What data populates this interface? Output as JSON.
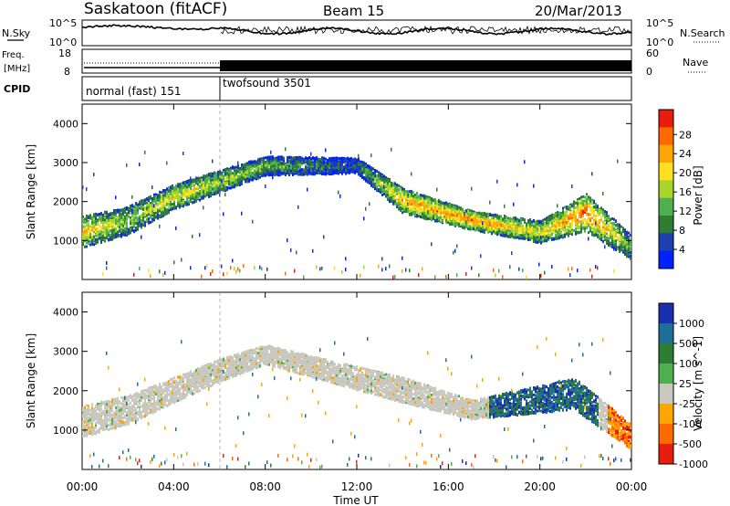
{
  "header": {
    "station": "Saskatoon (fitACF)",
    "beam": "Beam 15",
    "date": "20/Mar/2013"
  },
  "noise_panel": {
    "left_label": "N.Sky",
    "right_label": "N.Search",
    "left_ticks": [
      "10^5",
      "10^0"
    ],
    "right_ticks": [
      "10^5",
      "10^0"
    ]
  },
  "freq_panel": {
    "label_freq": "Freq.",
    "label_unit": "[MHz]",
    "left_ticks": [
      "18",
      "8"
    ],
    "right_ticks": [
      "60",
      "0"
    ],
    "right_label": "Nave"
  },
  "cpid": {
    "label": "CPID",
    "segments": [
      {
        "name": "normal (fast) 151",
        "start": "00:00",
        "end": "06:00"
      },
      {
        "name": "twofsound 3501",
        "start": "06:00",
        "end": "24:00"
      }
    ]
  },
  "chart_data": [
    {
      "type": "heatmap",
      "title": "Power",
      "xlabel": "",
      "ylabel": "Slant Range [km]",
      "xlim_hours": [
        0,
        24
      ],
      "ylim": [
        0,
        4500
      ],
      "yticks": [
        1000,
        2000,
        3000,
        4000
      ],
      "colorbar": {
        "label": "Power [dB]",
        "ticks": [
          "4",
          "8",
          "12",
          "16",
          "20",
          "24",
          "28"
        ],
        "colors": [
          "#0022ff",
          "#1e3fb0",
          "#2e7d32",
          "#4fb04f",
          "#a6d62a",
          "#ffe020",
          "#ffa500",
          "#ff6a00",
          "#e81d0e"
        ]
      },
      "scatter_bands": [
        {
          "t": 0.0,
          "range": 1200,
          "width": 500,
          "power": 20
        },
        {
          "t": 2.0,
          "range": 1500,
          "width": 450,
          "power": 14
        },
        {
          "t": 4.0,
          "range": 2100,
          "width": 400,
          "power": 18
        },
        {
          "t": 6.0,
          "range": 2500,
          "width": 350,
          "power": 16
        },
        {
          "t": 8.0,
          "range": 2900,
          "width": 300,
          "power": 12
        },
        {
          "t": 12.0,
          "range": 2900,
          "width": 250,
          "power": 6
        },
        {
          "t": 14.0,
          "range": 2000,
          "width": 400,
          "power": 22
        },
        {
          "t": 17.0,
          "range": 1500,
          "width": 300,
          "power": 24
        },
        {
          "t": 20.0,
          "range": 1200,
          "width": 350,
          "power": 18
        },
        {
          "t": 22.0,
          "range": 1700,
          "width": 600,
          "power": 26
        },
        {
          "t": 24.0,
          "range": 800,
          "width": 400,
          "power": 12
        }
      ]
    },
    {
      "type": "heatmap",
      "title": "Velocity",
      "xlabel": "Time UT",
      "ylabel": "Slant Range [km]",
      "xlim_hours": [
        0,
        24
      ],
      "ylim": [
        0,
        4500
      ],
      "yticks": [
        1000,
        2000,
        3000,
        4000
      ],
      "xticks": [
        "00:00",
        "04:00",
        "08:00",
        "12:00",
        "16:00",
        "20:00",
        "00:00"
      ],
      "colorbar": {
        "label": "Velocity [m s^-1]",
        "ticks": [
          "1000",
          "500",
          "100",
          "25",
          "-25",
          "-100",
          "-500",
          "-1000"
        ],
        "colors": [
          "#1a2fb0",
          "#1e6e9a",
          "#2e7d32",
          "#4fb04f",
          "#c8c8c0",
          "#ffa500",
          "#ff6a00",
          "#e81d0e"
        ]
      },
      "scatter_bands": [
        {
          "t": 0.0,
          "range": 1200,
          "width": 500,
          "velocity": 0
        },
        {
          "t": 2.0,
          "range": 1500,
          "width": 450,
          "velocity": 0
        },
        {
          "t": 6.0,
          "range": 2500,
          "width": 350,
          "velocity": 0
        },
        {
          "t": 8.0,
          "range": 2900,
          "width": 300,
          "velocity": 0
        },
        {
          "t": 14.0,
          "range": 2000,
          "width": 400,
          "velocity": 0
        },
        {
          "t": 17.0,
          "range": 1500,
          "width": 300,
          "velocity": 0
        },
        {
          "t": 21.5,
          "range": 1900,
          "width": 500,
          "velocity": 300
        },
        {
          "t": 24.0,
          "range": 800,
          "width": 400,
          "velocity": -300
        }
      ]
    }
  ]
}
